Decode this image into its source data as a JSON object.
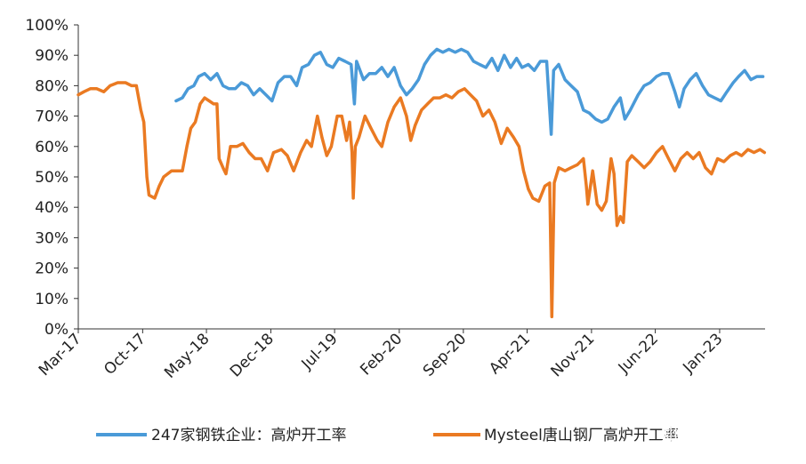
{
  "chart_data": {
    "type": "line",
    "y_axis": {
      "min": 0,
      "max": 100,
      "step": 10,
      "tick_labels": [
        "0%",
        "10%",
        "20%",
        "30%",
        "40%",
        "50%",
        "60%",
        "70%",
        "80%",
        "90%",
        "100%"
      ]
    },
    "x_axis": {
      "start": "2017-03",
      "end": "2023-06",
      "tick_labels": [
        "Mar-17",
        "Oct-17",
        "May-18",
        "Dec-18",
        "Jul-19",
        "Feb-20",
        "Sep-20",
        "Apr-21",
        "Nov-21",
        "Jun-22",
        "Jan-23"
      ],
      "tick_dates": [
        "2017-03",
        "2017-10",
        "2018-05",
        "2018-12",
        "2019-07",
        "2020-02",
        "2020-09",
        "2021-04",
        "2021-11",
        "2022-06",
        "2023-01"
      ]
    },
    "grid": false,
    "legend_position": "bottom",
    "series": [
      {
        "name": "247家钢铁企业：高炉开工率",
        "color": "#4a9ad8",
        "points": [
          [
            "2018-01-20",
            75
          ],
          [
            "2018-02-10",
            76
          ],
          [
            "2018-03-01",
            79
          ],
          [
            "2018-03-20",
            80
          ],
          [
            "2018-04-05",
            83
          ],
          [
            "2018-04-25",
            84
          ],
          [
            "2018-05-15",
            82
          ],
          [
            "2018-06-05",
            84
          ],
          [
            "2018-06-25",
            80
          ],
          [
            "2018-07-15",
            79
          ],
          [
            "2018-08-05",
            79
          ],
          [
            "2018-08-25",
            81
          ],
          [
            "2018-09-15",
            80
          ],
          [
            "2018-10-05",
            77
          ],
          [
            "2018-10-25",
            79
          ],
          [
            "2018-11-15",
            77
          ],
          [
            "2018-12-05",
            75
          ],
          [
            "2018-12-25",
            81
          ],
          [
            "2019-01-15",
            83
          ],
          [
            "2019-02-05",
            83
          ],
          [
            "2019-02-25",
            80
          ],
          [
            "2019-03-15",
            86
          ],
          [
            "2019-04-05",
            87
          ],
          [
            "2019-04-25",
            90
          ],
          [
            "2019-05-15",
            91
          ],
          [
            "2019-06-05",
            87
          ],
          [
            "2019-06-25",
            86
          ],
          [
            "2019-07-15",
            89
          ],
          [
            "2019-08-05",
            88
          ],
          [
            "2019-08-25",
            87
          ],
          [
            "2019-09-05",
            74
          ],
          [
            "2019-09-12",
            88
          ],
          [
            "2019-10-05",
            82
          ],
          [
            "2019-10-25",
            84
          ],
          [
            "2019-11-15",
            84
          ],
          [
            "2019-12-05",
            86
          ],
          [
            "2019-12-25",
            83
          ],
          [
            "2020-01-15",
            86
          ],
          [
            "2020-02-05",
            80
          ],
          [
            "2020-02-25",
            77
          ],
          [
            "2020-03-15",
            79
          ],
          [
            "2020-04-05",
            82
          ],
          [
            "2020-04-25",
            87
          ],
          [
            "2020-05-15",
            90
          ],
          [
            "2020-06-05",
            92
          ],
          [
            "2020-06-25",
            91
          ],
          [
            "2020-07-15",
            92
          ],
          [
            "2020-08-05",
            91
          ],
          [
            "2020-08-25",
            92
          ],
          [
            "2020-09-15",
            91
          ],
          [
            "2020-10-05",
            88
          ],
          [
            "2020-10-25",
            87
          ],
          [
            "2020-11-15",
            86
          ],
          [
            "2020-12-05",
            89
          ],
          [
            "2020-12-25",
            85
          ],
          [
            "2021-01-15",
            90
          ],
          [
            "2021-02-05",
            86
          ],
          [
            "2021-02-25",
            89
          ],
          [
            "2021-03-15",
            86
          ],
          [
            "2021-04-05",
            87
          ],
          [
            "2021-04-25",
            85
          ],
          [
            "2021-05-15",
            88
          ],
          [
            "2021-06-05",
            88
          ],
          [
            "2021-06-20",
            64
          ],
          [
            "2021-06-28",
            85
          ],
          [
            "2021-07-15",
            87
          ],
          [
            "2021-08-05",
            82
          ],
          [
            "2021-08-25",
            80
          ],
          [
            "2021-09-15",
            78
          ],
          [
            "2021-10-05",
            72
          ],
          [
            "2021-10-25",
            71
          ],
          [
            "2021-11-15",
            69
          ],
          [
            "2021-12-05",
            68
          ],
          [
            "2021-12-25",
            69
          ],
          [
            "2022-01-15",
            73
          ],
          [
            "2022-02-05",
            76
          ],
          [
            "2022-02-20",
            69
          ],
          [
            "2022-03-10",
            72
          ],
          [
            "2022-04-05",
            77
          ],
          [
            "2022-04-25",
            80
          ],
          [
            "2022-05-15",
            81
          ],
          [
            "2022-06-05",
            83
          ],
          [
            "2022-06-25",
            84
          ],
          [
            "2022-07-15",
            84
          ],
          [
            "2022-08-05",
            78
          ],
          [
            "2022-08-20",
            73
          ],
          [
            "2022-09-05",
            79
          ],
          [
            "2022-09-25",
            82
          ],
          [
            "2022-10-15",
            84
          ],
          [
            "2022-11-05",
            80
          ],
          [
            "2022-11-25",
            77
          ],
          [
            "2022-12-15",
            76
          ],
          [
            "2023-01-05",
            75
          ],
          [
            "2023-01-25",
            78
          ],
          [
            "2023-02-15",
            81
          ],
          [
            "2023-03-05",
            83
          ],
          [
            "2023-03-25",
            85
          ],
          [
            "2023-04-15",
            82
          ],
          [
            "2023-05-05",
            83
          ],
          [
            "2023-05-25",
            83
          ]
        ]
      },
      {
        "name": "Mysteel唐山钢厂高炉开工率",
        "color": "#ea7a22",
        "points": [
          [
            "2017-03-01",
            77
          ],
          [
            "2017-03-20",
            78
          ],
          [
            "2017-04-10",
            79
          ],
          [
            "2017-05-01",
            79
          ],
          [
            "2017-05-25",
            78
          ],
          [
            "2017-06-15",
            80
          ],
          [
            "2017-07-10",
            81
          ],
          [
            "2017-08-05",
            81
          ],
          [
            "2017-08-25",
            80
          ],
          [
            "2017-09-10",
            80
          ],
          [
            "2017-09-25",
            72
          ],
          [
            "2017-10-05",
            68
          ],
          [
            "2017-10-15",
            50
          ],
          [
            "2017-10-22",
            44
          ],
          [
            "2017-11-10",
            43
          ],
          [
            "2017-11-25",
            47
          ],
          [
            "2017-12-10",
            50
          ],
          [
            "2018-01-05",
            52
          ],
          [
            "2018-01-25",
            52
          ],
          [
            "2018-02-10",
            52
          ],
          [
            "2018-02-25",
            60
          ],
          [
            "2018-03-10",
            66
          ],
          [
            "2018-03-25",
            68
          ],
          [
            "2018-04-10",
            74
          ],
          [
            "2018-04-25",
            76
          ],
          [
            "2018-05-10",
            75
          ],
          [
            "2018-05-25",
            74
          ],
          [
            "2018-06-05",
            74
          ],
          [
            "2018-06-12",
            56
          ],
          [
            "2018-06-25",
            53
          ],
          [
            "2018-07-05",
            51
          ],
          [
            "2018-07-20",
            60
          ],
          [
            "2018-08-10",
            60
          ],
          [
            "2018-08-30",
            61
          ],
          [
            "2018-09-20",
            58
          ],
          [
            "2018-10-10",
            56
          ],
          [
            "2018-10-30",
            56
          ],
          [
            "2018-11-20",
            52
          ],
          [
            "2018-12-10",
            58
          ],
          [
            "2019-01-05",
            59
          ],
          [
            "2019-01-25",
            57
          ],
          [
            "2019-02-15",
            52
          ],
          [
            "2019-03-10",
            58
          ],
          [
            "2019-03-30",
            62
          ],
          [
            "2019-04-15",
            60
          ],
          [
            "2019-05-05",
            70
          ],
          [
            "2019-05-20",
            63
          ],
          [
            "2019-06-05",
            57
          ],
          [
            "2019-06-20",
            60
          ],
          [
            "2019-07-10",
            70
          ],
          [
            "2019-07-25",
            70
          ],
          [
            "2019-08-10",
            62
          ],
          [
            "2019-08-20",
            68
          ],
          [
            "2019-08-28",
            58
          ],
          [
            "2019-09-01",
            43
          ],
          [
            "2019-09-08",
            60
          ],
          [
            "2019-09-20",
            63
          ],
          [
            "2019-10-10",
            70
          ],
          [
            "2019-10-30",
            66
          ],
          [
            "2019-11-20",
            62
          ],
          [
            "2019-12-05",
            60
          ],
          [
            "2019-12-25",
            68
          ],
          [
            "2020-01-15",
            73
          ],
          [
            "2020-02-05",
            76
          ],
          [
            "2020-02-25",
            70
          ],
          [
            "2020-03-10",
            62
          ],
          [
            "2020-03-25",
            67
          ],
          [
            "2020-04-15",
            72
          ],
          [
            "2020-05-05",
            74
          ],
          [
            "2020-05-25",
            76
          ],
          [
            "2020-06-15",
            76
          ],
          [
            "2020-07-05",
            77
          ],
          [
            "2020-07-25",
            76
          ],
          [
            "2020-08-15",
            78
          ],
          [
            "2020-09-05",
            79
          ],
          [
            "2020-09-25",
            77
          ],
          [
            "2020-10-15",
            75
          ],
          [
            "2020-11-05",
            70
          ],
          [
            "2020-11-25",
            72
          ],
          [
            "2020-12-15",
            68
          ],
          [
            "2021-01-05",
            61
          ],
          [
            "2021-01-25",
            66
          ],
          [
            "2021-02-15",
            63
          ],
          [
            "2021-03-05",
            60
          ],
          [
            "2021-03-20",
            52
          ],
          [
            "2021-04-05",
            46
          ],
          [
            "2021-04-20",
            43
          ],
          [
            "2021-05-10",
            42
          ],
          [
            "2021-05-30",
            47
          ],
          [
            "2021-06-15",
            48
          ],
          [
            "2021-06-22",
            4
          ],
          [
            "2021-06-30",
            48
          ],
          [
            "2021-07-15",
            53
          ],
          [
            "2021-08-05",
            52
          ],
          [
            "2021-08-25",
            53
          ],
          [
            "2021-09-15",
            54
          ],
          [
            "2021-10-05",
            56
          ],
          [
            "2021-10-15",
            47
          ],
          [
            "2021-10-20",
            41
          ],
          [
            "2021-11-05",
            52
          ],
          [
            "2021-11-20",
            41
          ],
          [
            "2021-12-05",
            39
          ],
          [
            "2021-12-20",
            42
          ],
          [
            "2022-01-05",
            56
          ],
          [
            "2022-01-15",
            51
          ],
          [
            "2022-01-25",
            34
          ],
          [
            "2022-02-05",
            37
          ],
          [
            "2022-02-15",
            35
          ],
          [
            "2022-02-28",
            55
          ],
          [
            "2022-03-15",
            57
          ],
          [
            "2022-04-05",
            55
          ],
          [
            "2022-04-25",
            53
          ],
          [
            "2022-05-15",
            55
          ],
          [
            "2022-06-05",
            58
          ],
          [
            "2022-06-25",
            60
          ],
          [
            "2022-07-15",
            56
          ],
          [
            "2022-08-05",
            52
          ],
          [
            "2022-08-25",
            56
          ],
          [
            "2022-09-15",
            58
          ],
          [
            "2022-10-05",
            56
          ],
          [
            "2022-10-25",
            58
          ],
          [
            "2022-11-15",
            53
          ],
          [
            "2022-12-05",
            51
          ],
          [
            "2022-12-25",
            56
          ],
          [
            "2023-01-15",
            55
          ],
          [
            "2023-02-05",
            57
          ],
          [
            "2023-02-25",
            58
          ],
          [
            "2023-03-15",
            57
          ],
          [
            "2023-04-05",
            59
          ],
          [
            "2023-04-25",
            58
          ],
          [
            "2023-05-15",
            59
          ],
          [
            "2023-05-30",
            58
          ]
        ]
      }
    ],
    "watermark": "知乎 @期货老杨"
  }
}
